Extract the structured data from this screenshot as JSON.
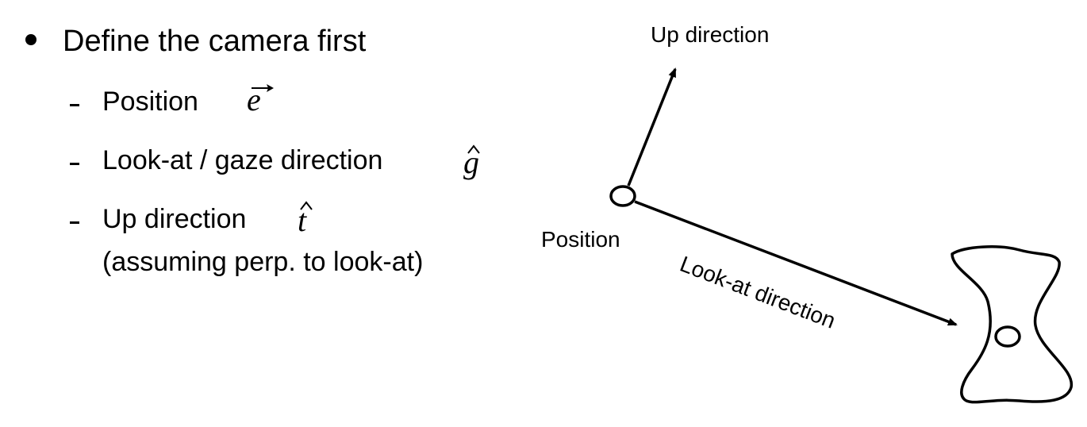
{
  "bullet": {
    "text": "Define the camera first"
  },
  "items": [
    {
      "label": "Position",
      "symbol": "e",
      "symbol_accent": "vector-arrow"
    },
    {
      "label": "Look-at / gaze direction",
      "symbol": "g",
      "symbol_accent": "hat"
    },
    {
      "label": "Up direction",
      "symbol": "t",
      "symbol_accent": "hat",
      "note": "(assuming perp. to look-at)"
    }
  ],
  "diagram": {
    "up_label": "Up direction",
    "position_label": "Position",
    "lookat_label": "Look-at direction"
  }
}
